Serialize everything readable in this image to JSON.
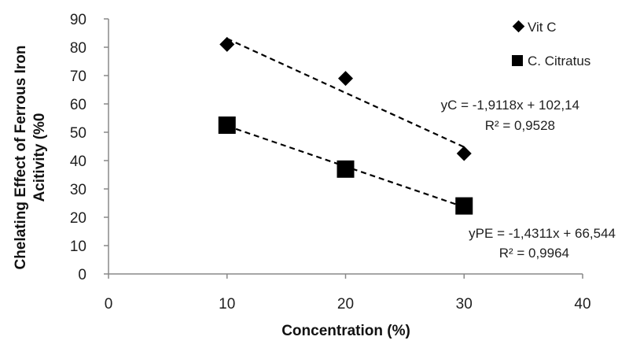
{
  "chart_data": {
    "type": "scatter",
    "title": "",
    "xlabel": "Concentration (%)",
    "ylabel_lines": [
      "Chelating Effect of Ferrous Iron",
      "Acitivity (%0"
    ],
    "xlim": [
      0,
      40
    ],
    "ylim": [
      0,
      90
    ],
    "x_ticks": [
      0,
      10,
      20,
      30,
      40
    ],
    "y_ticks": [
      0,
      10,
      20,
      30,
      40,
      50,
      60,
      70,
      80,
      90
    ],
    "grid": false,
    "legend_position": "top-right",
    "series": [
      {
        "name": "Vit C",
        "marker": "diamond",
        "color": "#000000",
        "x": [
          10,
          20,
          30
        ],
        "y": [
          81,
          69,
          42.5
        ],
        "trendline": {
          "slope": -1.9118,
          "intercept": 102.14,
          "style": "dashed"
        },
        "equation": "yC = -1,9118x + 102,14",
        "r2": "R² = 0,9528"
      },
      {
        "name": "C. Citratus",
        "marker": "square",
        "color": "#000000",
        "x": [
          10,
          20,
          30
        ],
        "y": [
          52.5,
          37,
          24
        ],
        "trendline": {
          "slope": -1.4311,
          "intercept": 66.544,
          "style": "dashed"
        },
        "equation": "yPE = -1,4311x + 66,544",
        "r2": "R² = 0,9964"
      }
    ]
  }
}
